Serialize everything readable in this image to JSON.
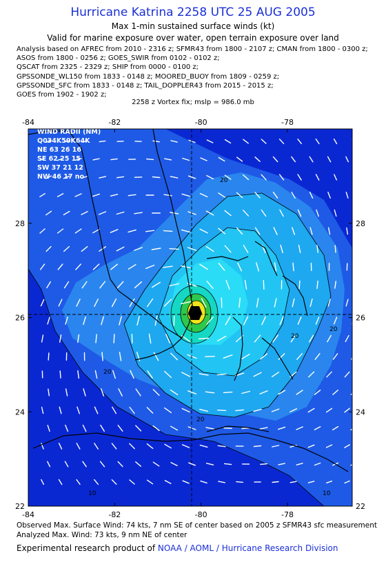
{
  "header": {
    "title": "Hurricane Katrina 2258 UTC 25 AUG 2005",
    "subtitle1": "Max 1-min sustained surface winds (kt)",
    "subtitle2": "Valid for marine exposure over water, open terrain exposure over land",
    "sources": [
      "Analysis based on  AFREC from 2010 - 2316 z;  SFMR43 from 1800 - 2107 z;  CMAN from 1800 - 0300 z;",
      "ASOS from 1800 - 0256 z;  GOES_SWIR from 0102 - 0102 z;",
      "QSCAT from 2325 - 2329 z;  SHIP from 0000 - 0100 z;",
      "GPSSONDE_WL150 from 1833 - 0148 z;  MOORED_BUOY from 1809 - 0259 z;",
      "GPSSONDE_SFC from 1833 - 0148 z;  TAIL_DOPPLER43 from 2015 - 2015 z;",
      "GOES from 1902 - 1902 z;"
    ],
    "vortex": "2258 z Vortex fix; mslp = 986.0 mb"
  },
  "map": {
    "lon_ticks": [
      -84,
      -82,
      -80,
      -78
    ],
    "lat_ticks": [
      22,
      24,
      26,
      28
    ],
    "lon_range": [
      -84,
      -76.5
    ],
    "lat_range": [
      22,
      30
    ],
    "center": {
      "lon": -79.95,
      "lat": 25.85
    },
    "contour_labels": [
      "20",
      "20",
      "20",
      "20",
      "20",
      "10",
      "10"
    ],
    "wind_radii": {
      "title": "WIND RADII (NM)",
      "header": "Q034K50K64K",
      "rows": [
        "NE 63 26 16",
        "SE 62 25 15",
        "SW 37 21 12",
        "NW 46 17 no"
      ]
    },
    "colors": {
      "ocean_deep": "#0a28d2",
      "blue_mid": "#1e5ae6",
      "blue_light": "#2a86ee",
      "cyan1": "#1ea8f0",
      "cyan2": "#22c4f4",
      "cyan3": "#2adcf6",
      "teal": "#14d8c4",
      "green": "#2ec84c",
      "yellow": "#f2e41a",
      "orange": "#e89a1a",
      "land_line": "#000000"
    }
  },
  "footer": {
    "line1": "Observed Max. Surface Wind: 74 kts, 7 nm SE of center based on 2005 z SFMR43 sfc measurement",
    "line2": "Analyzed Max. Wind: 73 kts, 9 nm NE of center",
    "credit_prefix": "Experimental research product of ",
    "credit_link": "NOAA / AOML / Hurricane Research Division"
  }
}
